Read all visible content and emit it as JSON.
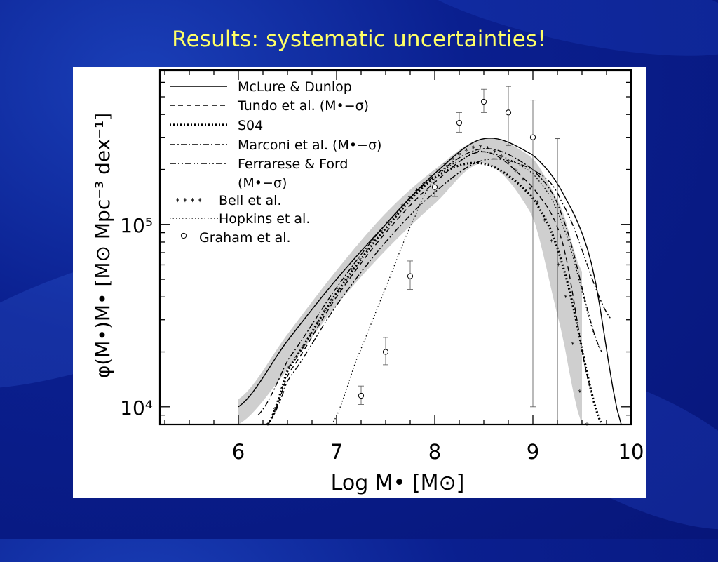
{
  "slide": {
    "title": "Results: systematic uncertainties!"
  },
  "chart_data": {
    "type": "line",
    "title": "",
    "xlabel": "Log M• [M⊙]",
    "ylabel": "φ(M•)M• [M⊙ Mpc⁻³ dex⁻¹]",
    "xlim": [
      5.2,
      10.0
    ],
    "ylim": [
      8000,
      700000
    ],
    "yscale": "log",
    "x_ticks": [
      "6",
      "7",
      "8",
      "9",
      "10"
    ],
    "y_ticks": [
      "10⁴",
      "10⁵"
    ],
    "grid": false,
    "legend_position": "top-left",
    "band": {
      "name": "",
      "x": [
        6.0,
        6.5,
        7.0,
        7.5,
        8.0,
        8.5,
        9.0,
        9.3,
        9.5
      ],
      "upper": [
        11000,
        25000,
        56000,
        115000,
        200000,
        295000,
        230000,
        120000,
        55000
      ],
      "lower": [
        8000,
        16000,
        36000,
        72000,
        130000,
        215000,
        110000,
        25000,
        8000
      ]
    },
    "series": [
      {
        "name": "McLure & Dunlop",
        "style": "solid",
        "x": [
          6.0,
          6.5,
          7.0,
          7.5,
          8.0,
          8.5,
          9.0,
          9.3,
          9.6,
          9.9
        ],
        "y": [
          10000,
          23000,
          50000,
          100000,
          190000,
          295000,
          240000,
          150000,
          60000,
          8000
        ]
      },
      {
        "name": "Tundo et al. (M•−σ)",
        "style": "dashed",
        "x": [
          6.3,
          6.5,
          7.0,
          7.5,
          8.0,
          8.5,
          9.0,
          9.3,
          9.6
        ],
        "y": [
          8000,
          15000,
          40000,
          90000,
          170000,
          250000,
          160000,
          80000,
          12000
        ]
      },
      {
        "name": "S04",
        "style": "thick-dotted",
        "x": [
          6.3,
          6.5,
          7.0,
          7.5,
          8.0,
          8.5,
          9.0,
          9.3,
          9.7
        ],
        "y": [
          8000,
          16000,
          42000,
          95000,
          180000,
          215000,
          140000,
          60000,
          8000
        ]
      },
      {
        "name": "Marconi et al. (M•−σ)",
        "style": "dash-dot",
        "x": [
          6.2,
          6.5,
          7.0,
          7.5,
          8.0,
          8.5,
          9.0,
          9.3,
          9.7
        ],
        "y": [
          9000,
          18000,
          45000,
          100000,
          185000,
          260000,
          200000,
          110000,
          20000
        ]
      },
      {
        "name": "Ferrarese & Ford (M•−σ)",
        "style": "dash-dot-dot",
        "x": [
          6.3,
          6.5,
          7.0,
          7.5,
          8.0,
          8.5,
          9.0,
          9.3,
          9.8
        ],
        "y": [
          8000,
          14000,
          36000,
          80000,
          150000,
          225000,
          200000,
          130000,
          30000
        ]
      },
      {
        "name": "Bell et al.",
        "style": "stars",
        "x": [
          6.3,
          6.5,
          7.0,
          7.5,
          8.0,
          8.5,
          9.0,
          9.3,
          9.55
        ],
        "y": [
          8000,
          16000,
          42000,
          98000,
          190000,
          265000,
          150000,
          50000,
          8000
        ]
      },
      {
        "name": "Hopkins et al.",
        "style": "thin-dotted",
        "x": [
          6.95,
          7.2,
          7.5,
          7.8,
          8.0,
          8.3,
          8.5,
          9.0,
          9.3,
          9.7
        ],
        "y": [
          8000,
          18000,
          45000,
          110000,
          180000,
          230000,
          250000,
          190000,
          100000,
          20000
        ]
      }
    ],
    "scatter": {
      "name": "Graham et al.",
      "marker": "circle",
      "x": [
        7.25,
        7.5,
        7.75,
        8.0,
        8.25,
        8.5,
        8.75,
        9.0
      ],
      "y": [
        11500,
        20000,
        52000,
        160000,
        360000,
        470000,
        410000,
        300000
      ],
      "err_low": [
        1200,
        3000,
        8000,
        18000,
        40000,
        60000,
        140000,
        290000
      ],
      "err_high": [
        1500,
        4000,
        11000,
        20000,
        50000,
        80000,
        160000,
        180000
      ]
    },
    "extra_error_bar": {
      "x": 9.25,
      "y_low": 8000,
      "y_high": 295000
    },
    "legend_sublabel": "(M•−σ)",
    "legend_ferrarese_line1": "Ferrarese & Ford"
  }
}
